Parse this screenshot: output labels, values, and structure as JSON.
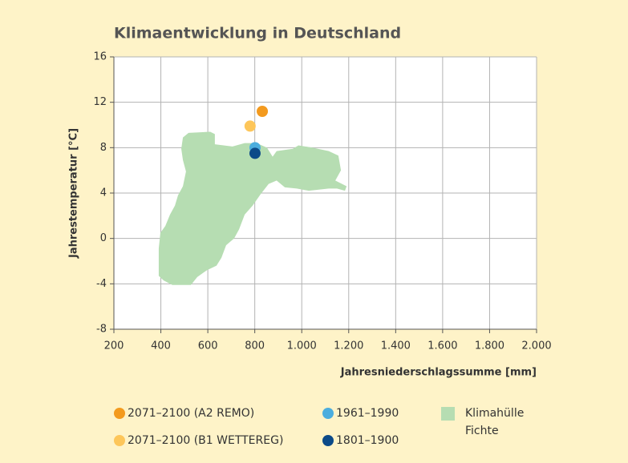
{
  "chart_data": {
    "type": "scatter",
    "title": "Klimaentwicklung in Deutschland",
    "x_label": "Jahresniederschlagssumme [mm]",
    "y_label": "Jahrestemperatur [°C]",
    "xlim": [
      200,
      2000
    ],
    "ylim": [
      -8,
      16
    ],
    "xticks": [
      200,
      400,
      600,
      800,
      {
        "value": 1000,
        "label": "1.000"
      },
      {
        "value": 1200,
        "label": "1.200"
      },
      {
        "value": 1400,
        "label": "1.400"
      },
      {
        "value": 1600,
        "label": "1.600"
      },
      {
        "value": 1800,
        "label": "1.800"
      },
      {
        "value": 2000,
        "label": "2.000"
      }
    ],
    "yticks": [
      -8,
      -4,
      0,
      4,
      8,
      12,
      16
    ],
    "grid": true,
    "series": [
      {
        "name": "2071–2100 (A2 REMO)",
        "color": "#f39a1e",
        "x": [
          832
        ],
        "y": [
          11.2
        ]
      },
      {
        "name": "2071–2100 (B1 WETTEREG)",
        "color": "#fdc65a",
        "x": [
          780
        ],
        "y": [
          9.9
        ]
      },
      {
        "name": "1961–1990",
        "color": "#4badde",
        "x": [
          801
        ],
        "y": [
          8.0
        ]
      },
      {
        "name": "1801–1900",
        "color": "#0c4a88",
        "x": [
          801
        ],
        "y": [
          7.5
        ]
      },
      {
        "name": "Klimahülle Fichte",
        "type": "area",
        "color": "#b6ddb2",
        "x": [
          494,
          518,
          610,
          630,
          630,
          705,
          757,
          808,
          852,
          876,
          893,
          962,
          986,
          1047,
          1115,
          1156,
          1167,
          1143,
          1191,
          1184,
          1150,
          1115,
          1030,
          979,
          928,
          893,
          859,
          825,
          791,
          757,
          733,
          712,
          678,
          658,
          637,
          596,
          555,
          528,
          449,
          412,
          391,
          391,
          398,
          419,
          439,
          460,
          473,
          494,
          507,
          494,
          487
        ],
        "y": [
          8.9,
          9.3,
          9.4,
          9.2,
          8.3,
          8.1,
          8.4,
          8.4,
          8.0,
          7.2,
          7.7,
          7.9,
          8.2,
          8.0,
          7.7,
          7.3,
          6.0,
          5.1,
          4.6,
          4.2,
          4.4,
          4.4,
          4.2,
          4.4,
          4.5,
          5.1,
          4.8,
          3.9,
          2.9,
          2.1,
          0.8,
          0.0,
          -0.6,
          -1.7,
          -2.4,
          -2.8,
          -3.4,
          -4.1,
          -4.1,
          -3.7,
          -3.3,
          -0.9,
          0.5,
          1.1,
          2.1,
          2.9,
          3.8,
          4.6,
          5.9,
          6.9,
          7.9
        ]
      }
    ]
  }
}
